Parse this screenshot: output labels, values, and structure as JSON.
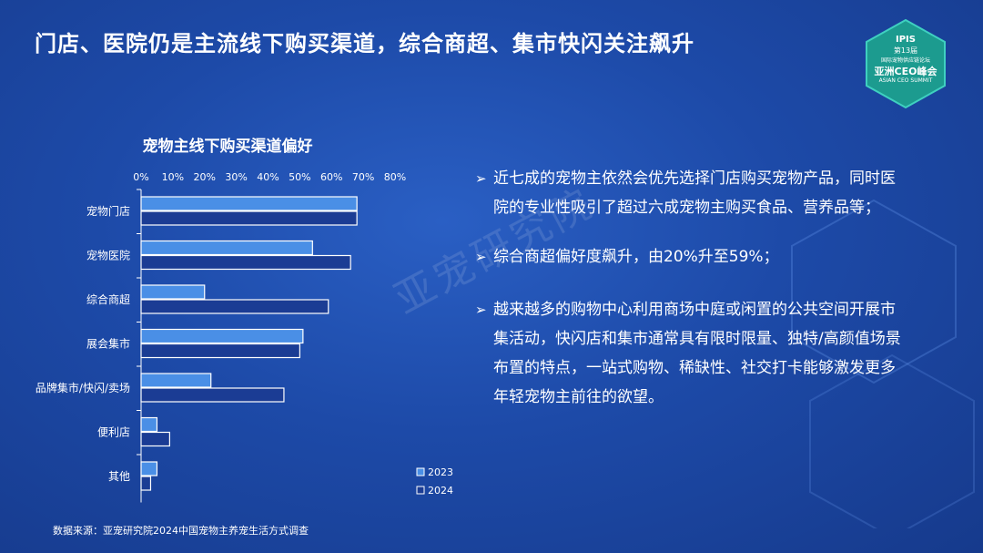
{
  "title": "门店、医院仍是主流线下购买渠道，综合商超、集市快闪关注飙升",
  "badge": {
    "line1": "IPIS",
    "line2": "第13届",
    "line3": "国际宠物供应链论坛",
    "line4": "亚洲CEO峰会",
    "line5": "ASIAN CEO SUMMIT"
  },
  "watermark": "亚宠研究院",
  "chart_data": {
    "type": "bar",
    "orientation": "horizontal",
    "title": "宠物主线下购买渠道偏好",
    "categories": [
      "宠物门店",
      "宠物医院",
      "综合商超",
      "展会集市",
      "品牌集市/快闪/卖场",
      "便利店",
      "其他"
    ],
    "series": [
      {
        "name": "2023",
        "values": [
          68,
          54,
          20,
          51,
          22,
          5,
          5
        ],
        "color": "#4a8fe6"
      },
      {
        "name": "2024",
        "values": [
          68,
          66,
          59,
          50,
          45,
          9,
          3
        ],
        "color": "#1b3c94"
      }
    ],
    "xlim": [
      0,
      80
    ],
    "xticks": [
      "0%",
      "10%",
      "20%",
      "30%",
      "40%",
      "50%",
      "60%",
      "70%",
      "80%"
    ],
    "grid": false,
    "legend_position": "bottom-right"
  },
  "bullets": [
    "近七成的宠物主依然会优先选择门店购买宠物产品，同时医院的专业性吸引了超过六成宠物主购买食品、营养品等；",
    "综合商超偏好度飙升，由20%升至59%；",
    "越来越多的购物中心利用商场中庭或闲置的公共空间开展市集活动，快闪店和集市通常具有限时限量、独特/高颜值场景布置的特点，一站式购物、稀缺性、社交打卡能够激发更多年轻宠物主前往的欲望。"
  ],
  "bullet_arrow": "➢",
  "source": "数据来源：亚宠研究院2024中国宠物主养宠生活方式调查"
}
